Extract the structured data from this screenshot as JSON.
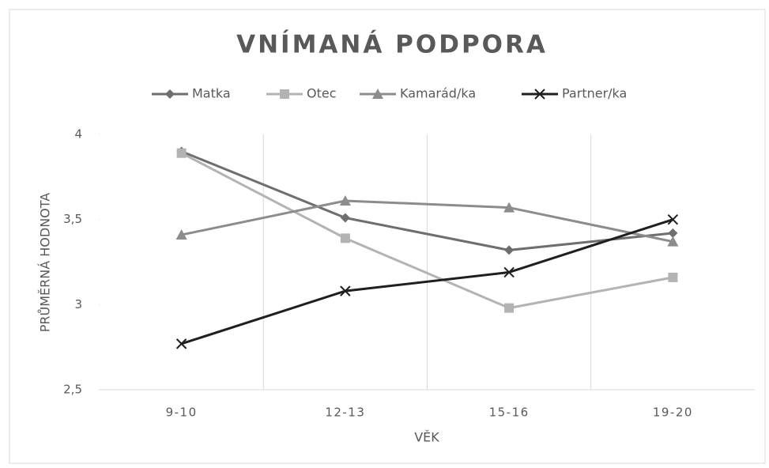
{
  "chart_data": {
    "type": "line",
    "title": "VNÍMANÁ PODPORA",
    "x_label": "VĚK",
    "y_label": "PRŮMĚRNÁ HODNOTA",
    "categories": [
      "9-10",
      "12-13",
      "15-16",
      "19-20"
    ],
    "series": [
      {
        "name": "Matka",
        "color": "#6e6e6e",
        "marker": "diamond",
        "values": [
          3.9,
          3.51,
          3.32,
          3.42
        ]
      },
      {
        "name": "Otec",
        "color": "#b3b3b3",
        "marker": "square",
        "values": [
          3.89,
          3.39,
          2.98,
          3.16
        ]
      },
      {
        "name": "Kamarád/ka",
        "color": "#8c8c8c",
        "marker": "triangle",
        "values": [
          3.41,
          3.61,
          3.57,
          3.37
        ]
      },
      {
        "name": "Partner/ka",
        "color": "#1f1f1f",
        "marker": "x",
        "values": [
          2.77,
          3.08,
          3.19,
          3.5
        ]
      }
    ],
    "ylim": [
      2.5,
      4
    ],
    "yticks": [
      {
        "value": 2.5,
        "label": "2,5"
      },
      3,
      {
        "value": 3.5,
        "label": "3,5"
      },
      4
    ],
    "grid": "vertical",
    "legend": "top"
  }
}
